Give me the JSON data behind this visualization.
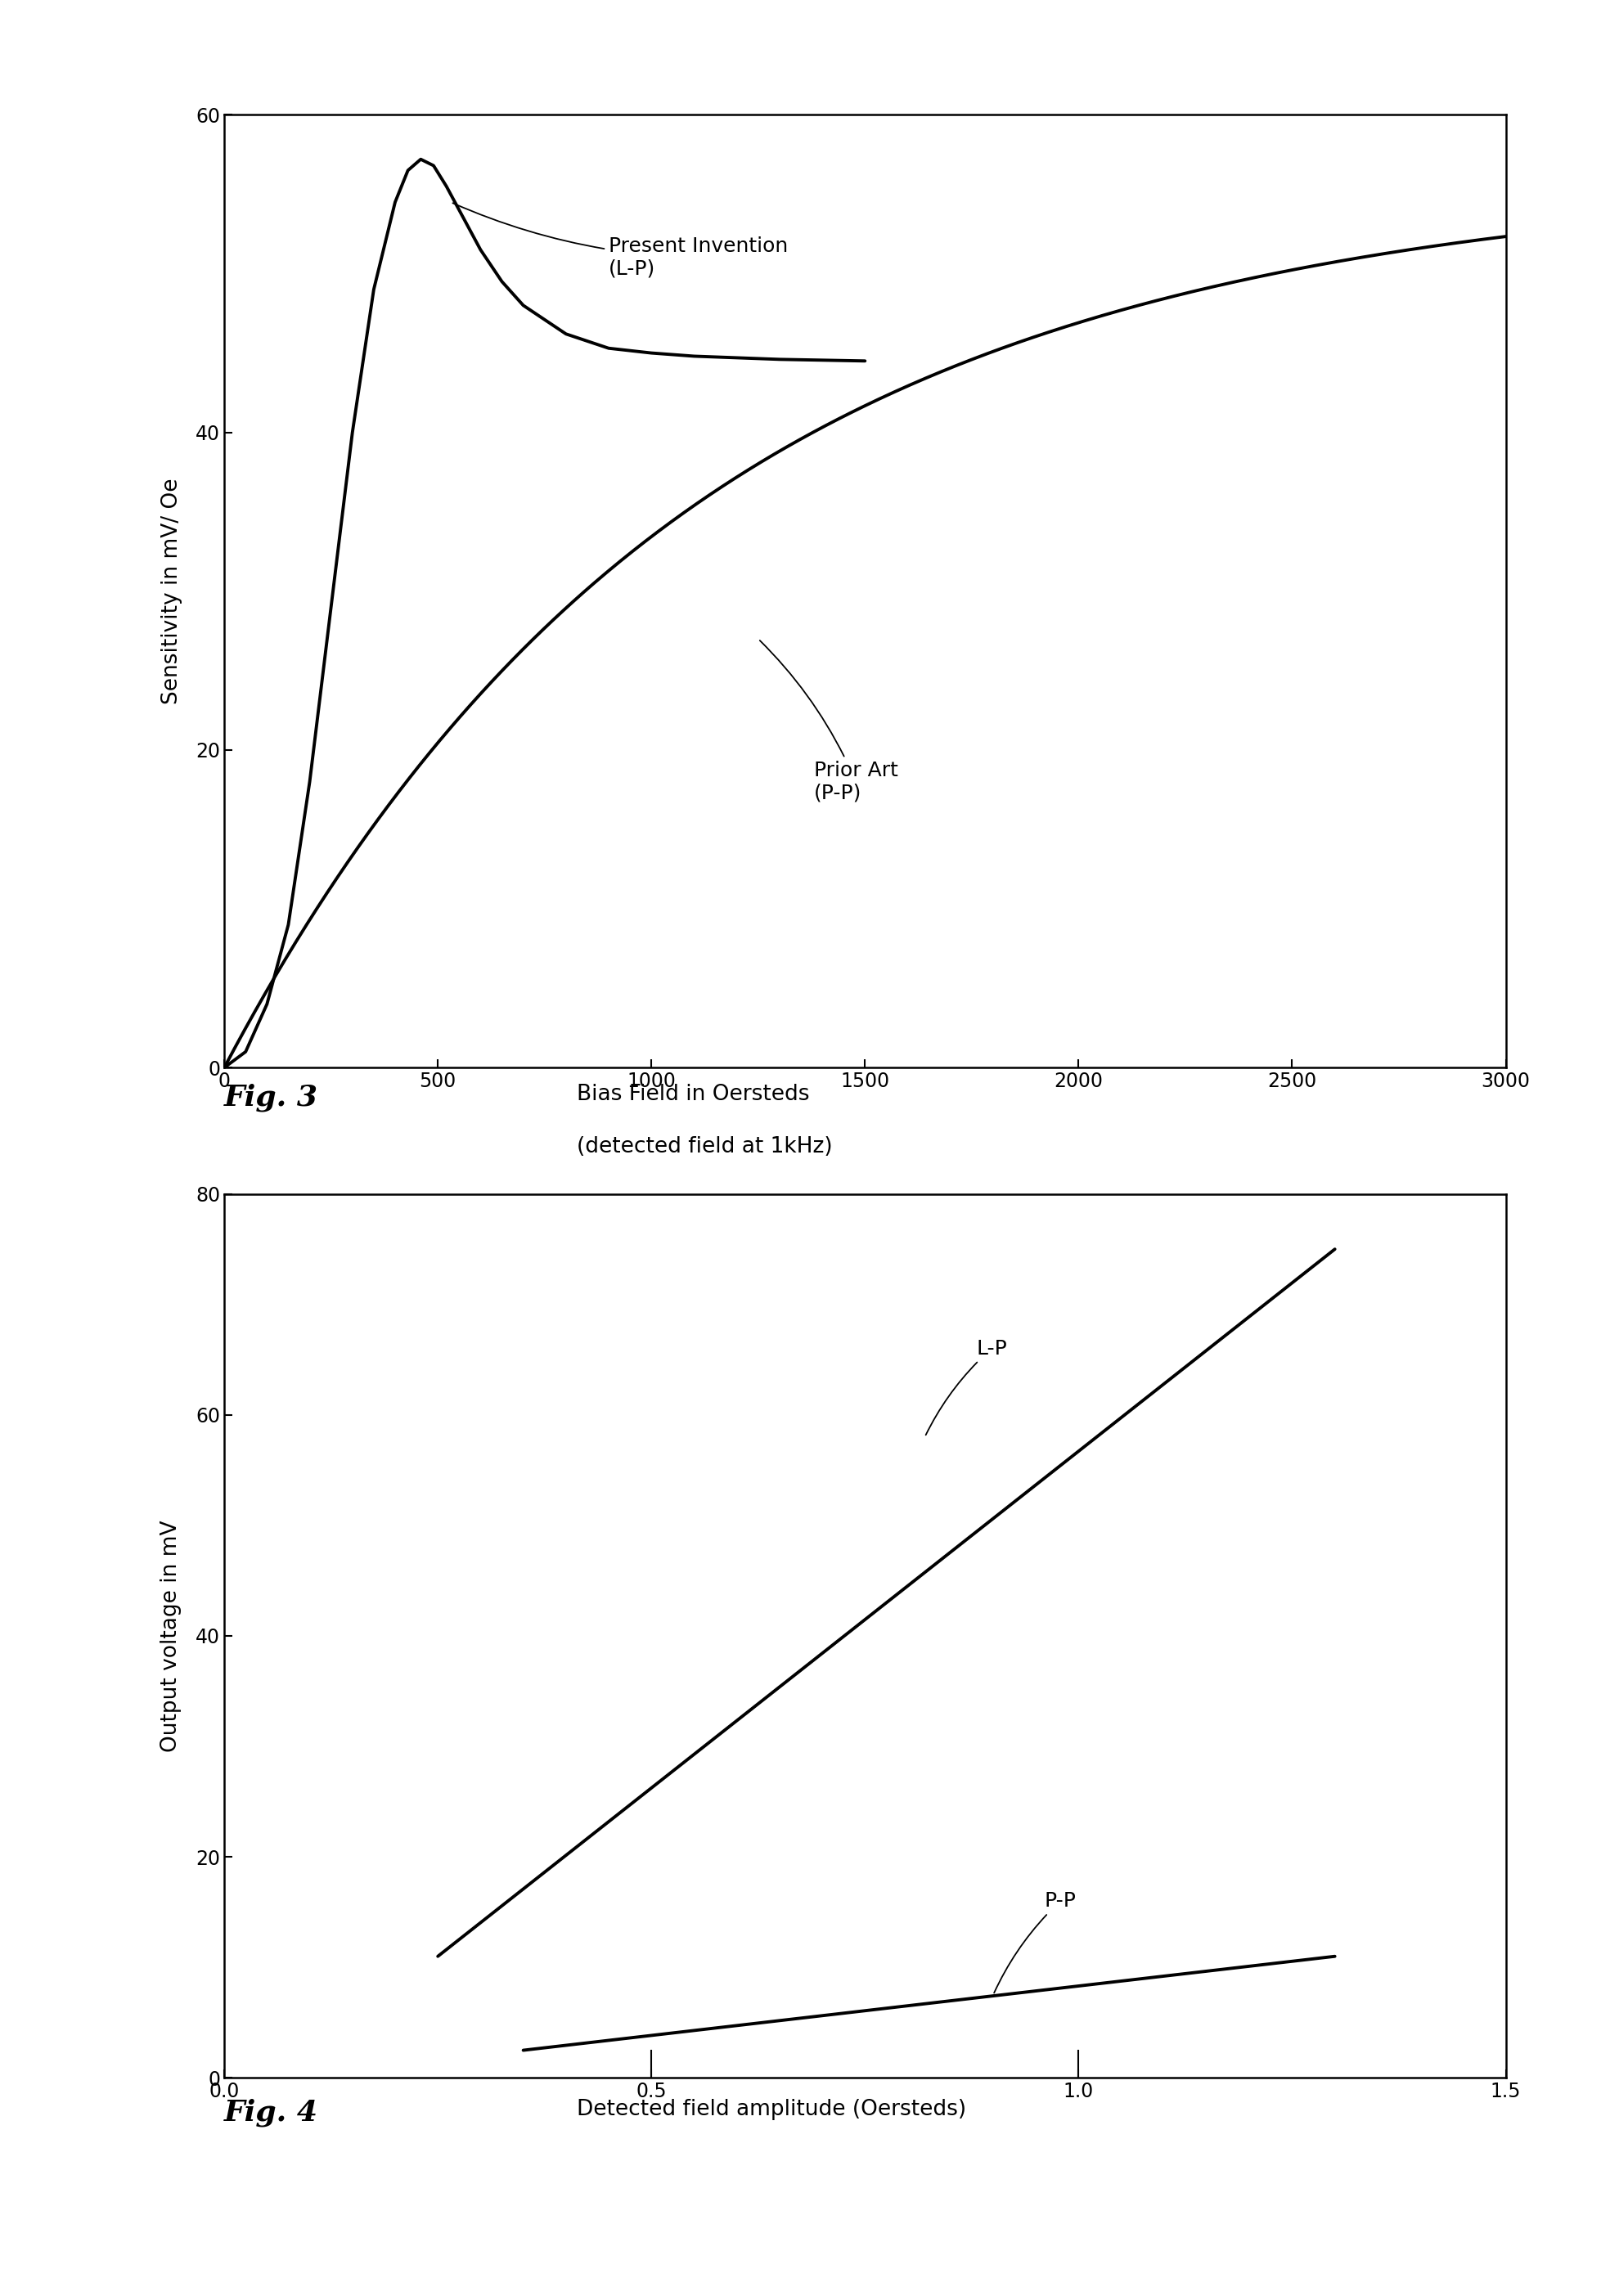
{
  "fig3": {
    "ylabel": "Sensitivity in mV/ Oe",
    "xlim": [
      0,
      3000
    ],
    "ylim": [
      0,
      60
    ],
    "xticks": [
      0,
      500,
      1000,
      1500,
      2000,
      2500,
      3000
    ],
    "yticks": [
      0,
      20,
      40,
      60
    ],
    "lp_label": "Present Invention\n(L-P)",
    "pp_label": "Prior Art\n(P-P)",
    "fig_label": "Fig. 3",
    "xlabel_line1": "Bias Field in Oersteds",
    "xlabel_line2": "(detected field at 1kHz)"
  },
  "fig4": {
    "ylabel": "Output voltage in mV",
    "xlim": [
      0,
      1.5
    ],
    "ylim": [
      0,
      80
    ],
    "xticks": [
      0,
      0.5,
      1.0,
      1.5
    ],
    "yticks": [
      0,
      20,
      40,
      60,
      80
    ],
    "lp_label": "L-P",
    "pp_label": "P-P",
    "fig_label": "Fig. 4",
    "xlabel": "Detected field amplitude (Oersteds)"
  },
  "line_color": "#000000",
  "line_width": 2.8,
  "bg_color": "#ffffff",
  "fig_label_fontsize": 26,
  "axis_label_fontsize": 19,
  "tick_fontsize": 17,
  "annotation_fontsize": 18,
  "caption_fontsize": 19
}
